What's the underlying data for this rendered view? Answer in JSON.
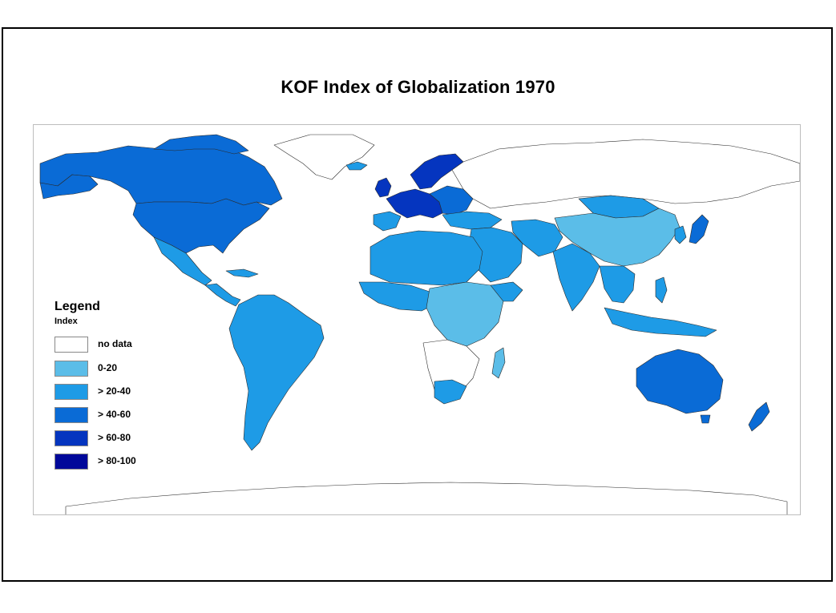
{
  "title": "KOF Index of Globalization 1970",
  "legend": {
    "title": "Legend",
    "subtitle": "Index",
    "items": [
      {
        "label": "no data",
        "color": "#ffffff"
      },
      {
        "label": "0-20",
        "color": "#5bbde8"
      },
      {
        "label": "> 20-40",
        "color": "#1e9be6"
      },
      {
        "label": "> 40-60",
        "color": "#0a6bd6"
      },
      {
        "label": "> 60-80",
        "color": "#0535bf"
      },
      {
        "label": "> 80-100",
        "color": "#00089a"
      }
    ]
  },
  "colors": {
    "border": "#000000",
    "coastline": "#4a4a4a",
    "map_frame": "#bdbdbd"
  }
}
